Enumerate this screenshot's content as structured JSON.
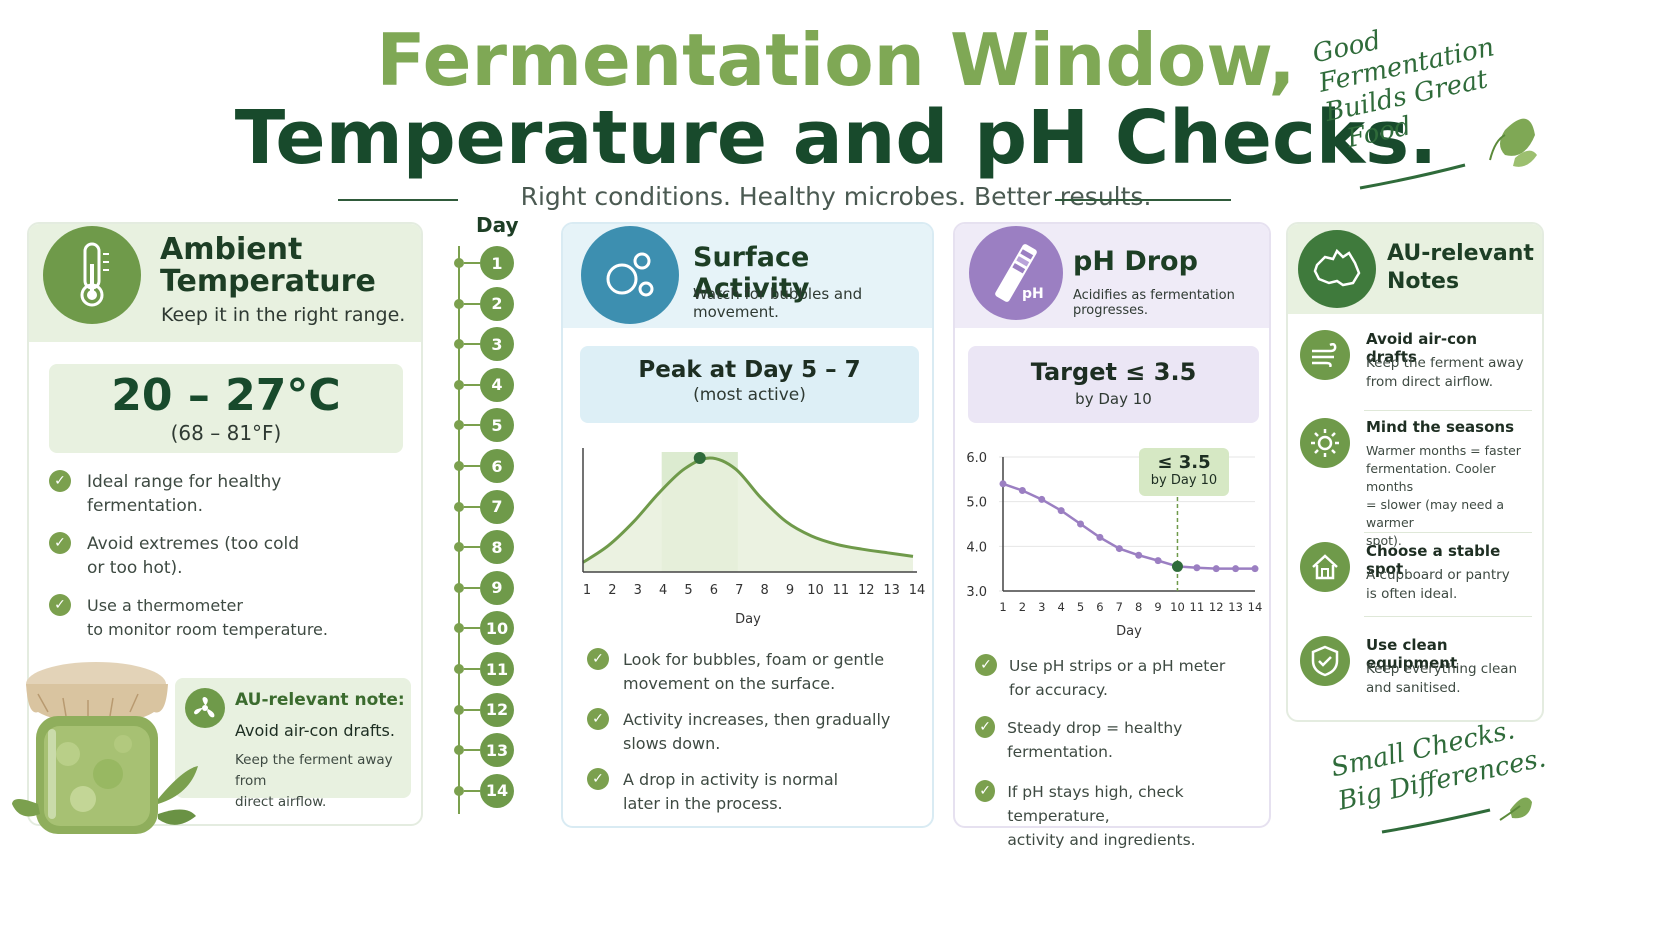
{
  "header": {
    "title_line1": "Fermentation  Window,",
    "title_line2": "Temperature and pH Checks.",
    "subtitle": "Right conditions. Healthy microbes. Better results.",
    "slogan_top": [
      "Good",
      "Fermentation",
      "Builds Great",
      "Food"
    ],
    "slogan_bottom": [
      "Small Checks.",
      "Big Differences."
    ]
  },
  "timeline": {
    "label": "Day",
    "days": [
      "1",
      "2",
      "3",
      "4",
      "5",
      "6",
      "7",
      "8",
      "9",
      "10",
      "11",
      "12",
      "13",
      "14"
    ]
  },
  "ambient": {
    "title_line1": "Ambient",
    "title_line2": "Temperature",
    "subtitle": "Keep it in the right range.",
    "range_c": "20 – 27°C",
    "range_f": "(68 – 81°F)",
    "bullets": [
      [
        "Ideal range for healthy",
        "fermentation."
      ],
      [
        "Avoid extremes (too cold",
        "or too hot)."
      ],
      [
        "Use a thermometer",
        "to monitor room temperature."
      ]
    ],
    "note_title": "AU-relevant note:",
    "note_sub": "Avoid air-con drafts.",
    "note_text": [
      "Keep the ferment away from",
      "direct airflow."
    ]
  },
  "surface": {
    "title": "Surface Activity",
    "subtitle": "Watch for bubbles and movement.",
    "peak_label": "Peak at Day  5 – 7",
    "peak_sub": "(most active)",
    "bullets": [
      [
        "Look for bubbles, foam or gentle",
        "movement on the surface."
      ],
      [
        "Activity increases, then gradually",
        "slows down."
      ],
      [
        "A drop in activity is normal",
        "later in the process."
      ]
    ]
  },
  "ph": {
    "title": "pH Drop",
    "subtitle": "Acidifies as fermentation progresses.",
    "icon_label": "pH",
    "target_label": "Target ≤ 3.5",
    "target_sub": "by Day 10",
    "callout_value": "≤ 3.5",
    "callout_sub": "by Day 10",
    "bullets": [
      [
        "Use pH strips or a pH meter",
        "for accuracy."
      ],
      [
        "Steady drop = healthy fermentation."
      ],
      [
        "If pH stays high, check temperature,",
        "activity and ingredients."
      ]
    ]
  },
  "au_notes": {
    "title_line1": "AU-relevant",
    "title_line2": "Notes",
    "items": [
      {
        "title": "Avoid air-con drafts",
        "lines": [
          "Keep the ferment away",
          "from direct airflow."
        ],
        "icon": "wind-icon"
      },
      {
        "title": "Mind the seasons",
        "lines": [
          "Warmer months = faster",
          "fermentation. Cooler months",
          "= slower (may need a warmer",
          "spot)."
        ],
        "icon": "sun-icon"
      },
      {
        "title": "Choose a stable spot",
        "lines": [
          "A cupboard or pantry",
          "is often ideal."
        ],
        "icon": "house-icon"
      },
      {
        "title": "Use clean equipment",
        "lines": [
          "Keep everything clean",
          "and sanitised."
        ],
        "icon": "shield-check-icon"
      }
    ]
  },
  "colors": {
    "dark_green": "#184a2c",
    "light_green": "#7fa855",
    "blue_accent": "#3d8fb0",
    "purple_accent": "#9b7fc2"
  },
  "chart_data": [
    {
      "type": "area",
      "x": [
        1,
        2,
        3,
        4,
        5,
        6,
        7,
        8,
        9,
        10,
        11,
        12,
        13,
        14
      ],
      "values": [
        0.08,
        0.22,
        0.42,
        0.66,
        0.86,
        0.95,
        0.86,
        0.62,
        0.42,
        0.3,
        0.23,
        0.19,
        0.16,
        0.13
      ],
      "highlight_range": [
        4.1,
        7.1
      ],
      "peak": {
        "x": 5.6,
        "y": 0.95
      },
      "xlabel": "Day",
      "ylabel": "",
      "xlim": [
        1,
        14
      ],
      "grid": false
    },
    {
      "type": "line",
      "x": [
        1,
        2,
        3,
        4,
        5,
        6,
        7,
        8,
        9,
        10,
        11,
        12,
        13,
        14
      ],
      "values": [
        5.4,
        5.25,
        5.05,
        4.8,
        4.5,
        4.2,
        3.95,
        3.8,
        3.68,
        3.55,
        3.52,
        3.5,
        3.5,
        3.5
      ],
      "target_day": 10,
      "xlabel": "Day",
      "ylabel": "",
      "ylim": [
        3.0,
        6.0
      ],
      "yticks": [
        "3.0",
        "4.0",
        "5.0",
        "6.0"
      ],
      "grid": true
    }
  ]
}
